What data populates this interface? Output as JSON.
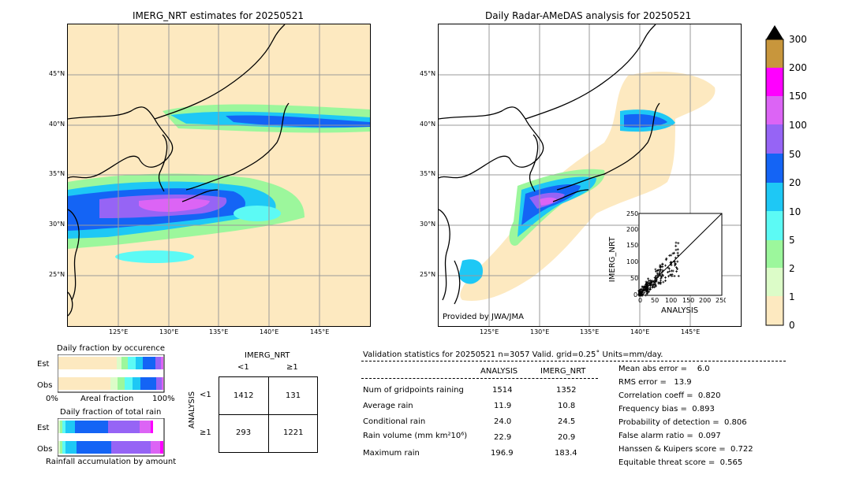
{
  "left_map": {
    "title": "IMERG_NRT estimates for 20250521",
    "lat_labels": [
      "45°N",
      "40°N",
      "35°N",
      "30°N",
      "25°N"
    ],
    "lon_labels": [
      "125°E",
      "130°E",
      "135°E",
      "140°E",
      "145°E"
    ]
  },
  "right_map": {
    "title": "Daily Radar-AMeDAS analysis for 20250521",
    "lat_labels": [
      "45°N",
      "40°N",
      "35°N",
      "30°N",
      "25°N"
    ],
    "lon_labels": [
      "125°E",
      "130°E",
      "135°E",
      "140°E",
      "145°E"
    ],
    "credit": "Provided by JWA/JMA"
  },
  "colorbar": {
    "levels": [
      "0",
      "1",
      "2",
      "5",
      "10",
      "20",
      "50",
      "100",
      "150",
      "200",
      "300"
    ],
    "colors": [
      "#fde9c0",
      "#dcfcc8",
      "#9cf79c",
      "#5cfaf5",
      "#1ec8f5",
      "#1464f5",
      "#9664f5",
      "#dc64f5",
      "#ff00ff",
      "#c8963c",
      "#000000"
    ]
  },
  "scatter": {
    "xlabel": "ANALYSIS",
    "ylabel": "IMERG_NRT",
    "ticks": [
      "0",
      "50",
      "100",
      "150",
      "200",
      "250"
    ]
  },
  "fractions": {
    "occurrence_title": "Daily fraction by occurence",
    "rain_title": "Daily fraction of total rain",
    "est_label": "Est",
    "obs_label": "Obs",
    "axis_left": "0%",
    "axis_mid": "Areal fraction",
    "axis_right": "100%",
    "accum_label": "Rainfall accumulation by amount"
  },
  "contingency": {
    "col_title": "IMERG_NRT",
    "col_lt": "<1",
    "col_ge": "≥1",
    "row_title": "ANALYSIS",
    "row_lt": "<1",
    "row_ge": "≥1",
    "cells": [
      "1412",
      "131",
      "293",
      "1221"
    ]
  },
  "validation": {
    "header": "Validation statistics for 20250521  n=3057 Valid. grid=0.25˚ Units=mm/day.",
    "col_analysis": "ANALYSIS",
    "col_imerg": "IMERG_NRT",
    "rows": [
      {
        "label": "Num of gridpoints raining",
        "a": "1514",
        "b": "1352"
      },
      {
        "label": "Average rain",
        "a": "11.9",
        "b": "10.8"
      },
      {
        "label": "Conditional rain",
        "a": "24.0",
        "b": "24.5"
      },
      {
        "label": "Rain volume (mm km²10⁶)",
        "a": "22.9",
        "b": "20.9"
      },
      {
        "label": "Maximum rain",
        "a": "196.9",
        "b": "183.4"
      }
    ],
    "scores": [
      "Mean abs error =    6.0",
      "RMS error =   13.9",
      "Correlation coeff =  0.820",
      "Frequency bias =  0.893",
      "Probability of detection =  0.806",
      "False alarm ratio =  0.097",
      "Hanssen & Kuipers score =  0.722",
      "Equitable threat score =  0.565"
    ]
  },
  "chart_data": [
    {
      "type": "heatmap",
      "title": "IMERG_NRT estimates for 20250521",
      "xlabel": "",
      "ylabel": "",
      "xlim": [
        120,
        150
      ],
      "ylim": [
        20,
        50
      ],
      "x_ticks": [
        "125°E",
        "130°E",
        "135°E",
        "140°E",
        "145°E"
      ],
      "y_ticks": [
        "45°N",
        "40°N",
        "35°N",
        "30°N",
        "25°N"
      ]
    },
    {
      "type": "heatmap",
      "title": "Daily Radar-AMeDAS analysis for 20250521",
      "xlabel": "",
      "ylabel": "",
      "xlim": [
        120,
        150
      ],
      "ylim": [
        20,
        50
      ],
      "x_ticks": [
        "125°E",
        "130°E",
        "135°E",
        "140°E",
        "145°E"
      ],
      "y_ticks": [
        "45°N",
        "40°N",
        "35°N",
        "30°N",
        "25°N"
      ]
    },
    {
      "type": "scatter",
      "xlabel": "ANALYSIS",
      "ylabel": "IMERG_NRT",
      "xlim": [
        0,
        250
      ],
      "ylim": [
        0,
        250
      ]
    },
    {
      "type": "bar",
      "title": "Daily fraction by occurence",
      "categories": [
        "Est",
        "Obs"
      ],
      "note": "stacked horizontal bars by rain class"
    }
  ]
}
